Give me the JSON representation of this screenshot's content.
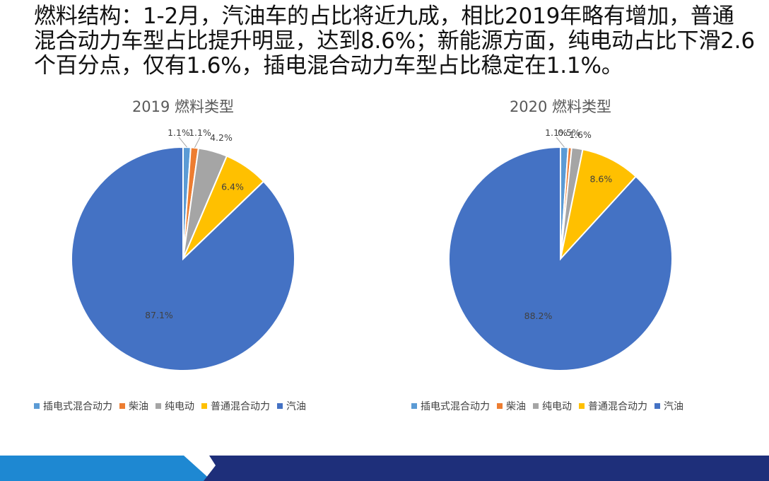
{
  "headline": "燃料结构：1-2月，汽油车的占比将近九成，相比2019年略有增加，普通混合动力车型占比提升明显，达到8.6%；新能源方面，纯电动占比下滑2.6个百分点，仅有1.6%，插电混合动力车型占比稳定在1.1%。",
  "colors": {
    "phev": "#5b9bd5",
    "diesel": "#ed7d31",
    "bev": "#a5a5a5",
    "hev": "#ffc000",
    "gasoline": "#4472c4",
    "footer_light": "#1e88d2",
    "footer_dark": "#1e2f7a"
  },
  "chart_data": [
    {
      "type": "pie",
      "title": "2019 燃料类型",
      "categories": [
        "插电式混合动力",
        "柴油",
        "纯电动",
        "普通混合动力",
        "汽油"
      ],
      "values": [
        1.1,
        1.1,
        4.2,
        6.4,
        87.1
      ],
      "labels": [
        "1.1%",
        "1.1%",
        "4.2%",
        "6.4%",
        "87.1%"
      ],
      "legend": "bottom"
    },
    {
      "type": "pie",
      "title": "2020 燃料类型",
      "categories": [
        "插电式混合动力",
        "柴油",
        "纯电动",
        "普通混合动力",
        "汽油"
      ],
      "values": [
        1.1,
        0.5,
        1.6,
        8.6,
        88.2
      ],
      "labels": [
        "1.1%",
        "0.5%",
        "1.6%",
        "8.6%",
        "88.2%"
      ],
      "legend": "bottom"
    }
  ]
}
